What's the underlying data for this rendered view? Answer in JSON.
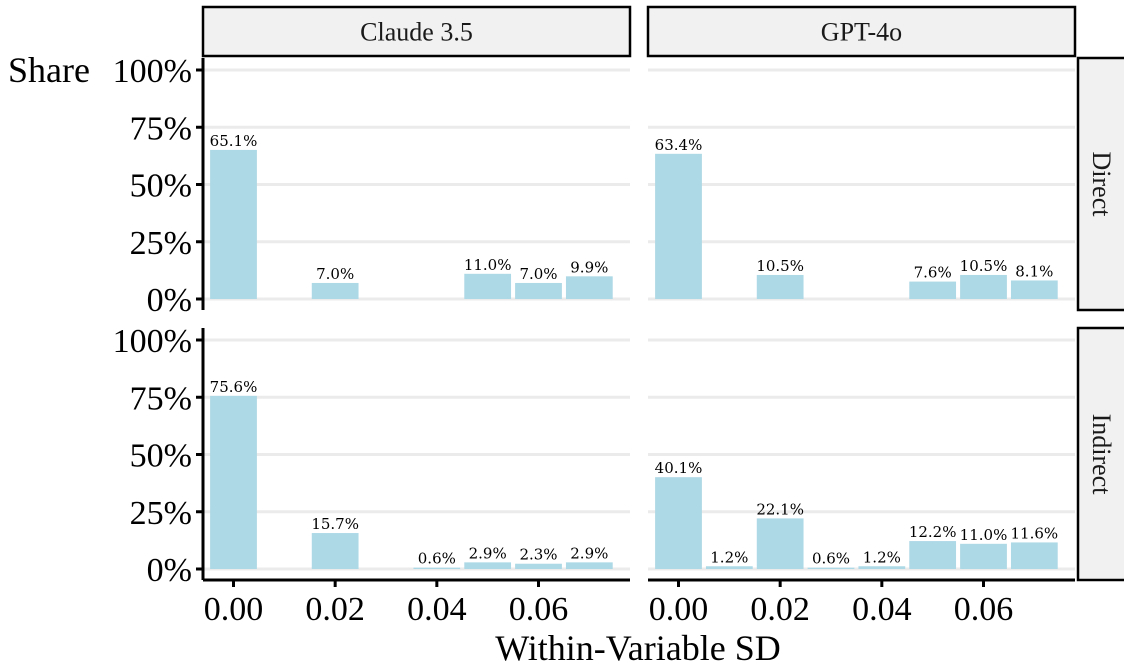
{
  "chart_data": {
    "type": "bar",
    "ylabel": "Share",
    "xlabel": "Within-Variable SD",
    "x_ticks": [
      "0.00",
      "0.02",
      "0.04",
      "0.06"
    ],
    "x_tick_values": [
      0.0,
      0.02,
      0.04,
      0.06
    ],
    "y_ticks": [
      "0%",
      "25%",
      "50%",
      "75%",
      "100%"
    ],
    "ylim": [
      0,
      100
    ],
    "xlim": [
      -0.006,
      0.078
    ],
    "bar_color": "#add8e6",
    "columns": [
      "Claude 3.5",
      "GPT-4o"
    ],
    "rows": [
      "Direct",
      "Indirect"
    ],
    "panels": [
      {
        "model": "Claude 3.5",
        "condition": "Direct",
        "bars": [
          {
            "x": 0.0,
            "value": 65.1,
            "label": "65.1%"
          },
          {
            "x": 0.02,
            "value": 7.0,
            "label": "7.0%"
          },
          {
            "x": 0.05,
            "value": 11.0,
            "label": "11.0%"
          },
          {
            "x": 0.06,
            "value": 7.0,
            "label": "7.0%"
          },
          {
            "x": 0.07,
            "value": 9.9,
            "label": "9.9%"
          }
        ]
      },
      {
        "model": "GPT-4o",
        "condition": "Direct",
        "bars": [
          {
            "x": 0.0,
            "value": 63.4,
            "label": "63.4%"
          },
          {
            "x": 0.02,
            "value": 10.5,
            "label": "10.5%"
          },
          {
            "x": 0.05,
            "value": 7.6,
            "label": "7.6%"
          },
          {
            "x": 0.06,
            "value": 10.5,
            "label": "10.5%"
          },
          {
            "x": 0.07,
            "value": 8.1,
            "label": "8.1%"
          }
        ]
      },
      {
        "model": "Claude 3.5",
        "condition": "Indirect",
        "bars": [
          {
            "x": 0.0,
            "value": 75.6,
            "label": "75.6%"
          },
          {
            "x": 0.02,
            "value": 15.7,
            "label": "15.7%"
          },
          {
            "x": 0.04,
            "value": 0.6,
            "label": "0.6%"
          },
          {
            "x": 0.05,
            "value": 2.9,
            "label": "2.9%"
          },
          {
            "x": 0.06,
            "value": 2.3,
            "label": "2.3%"
          },
          {
            "x": 0.07,
            "value": 2.9,
            "label": "2.9%"
          }
        ]
      },
      {
        "model": "GPT-4o",
        "condition": "Indirect",
        "bars": [
          {
            "x": 0.0,
            "value": 40.1,
            "label": "40.1%"
          },
          {
            "x": 0.01,
            "value": 1.2,
            "label": "1.2%"
          },
          {
            "x": 0.02,
            "value": 22.1,
            "label": "22.1%"
          },
          {
            "x": 0.03,
            "value": 0.6,
            "label": "0.6%"
          },
          {
            "x": 0.04,
            "value": 1.2,
            "label": "1.2%"
          },
          {
            "x": 0.05,
            "value": 12.2,
            "label": "12.2%"
          },
          {
            "x": 0.06,
            "value": 11.0,
            "label": "11.0%"
          },
          {
            "x": 0.07,
            "value": 11.6,
            "label": "11.6%"
          }
        ]
      }
    ]
  }
}
